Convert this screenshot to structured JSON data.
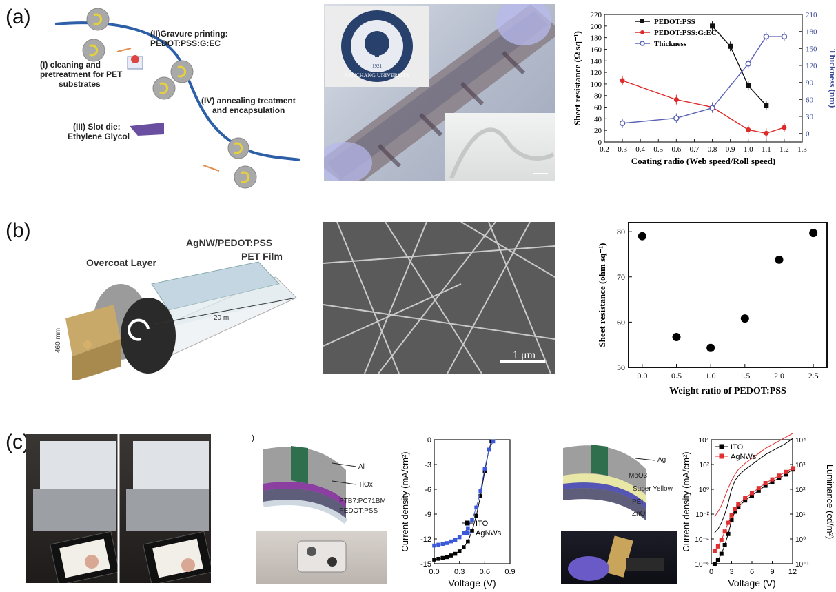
{
  "panels": {
    "a": "(a)",
    "b": "(b)",
    "c": "(c)"
  },
  "a_schematic": {
    "step1": [
      "(I) cleaning and",
      "pretreatment for PET",
      "substrates"
    ],
    "step2": [
      "(II)Gravure printing:",
      "PEDOT:PSS:G:EC"
    ],
    "step3": [
      "(III) Slot die:",
      "Ethylene Glycol"
    ],
    "step4": [
      "(IV) annealing treatment",
      "and encapsulation"
    ]
  },
  "a_photo": {
    "logo_text": "NANCHANG UNIVERSITY",
    "logo_year": "1921"
  },
  "b_schematic": {
    "overcoat": "Overcoat Layer",
    "agnw": "AgNW/PEDOT:PSS",
    "pet": "PET Film",
    "length": "20 m",
    "width": "460 mm"
  },
  "b_sem": {
    "scale": "1 μm"
  },
  "c_solar": {
    "layers": [
      "Al",
      "TiOx",
      "PTB7:PC71BM",
      "PEDOT:PSS"
    ],
    "paren": ")"
  },
  "c_led": {
    "layers": [
      "Ag",
      "MoO3",
      "Super Yellow",
      "PEI",
      "ZnO"
    ]
  },
  "chart_data": [
    {
      "id": "a_chart",
      "type": "line",
      "xlabel": "Coating radio (Web speed/Roll speed)",
      "ylabel": "Sheet resistance (Ω sq⁻¹)",
      "y2label": "Thickness (nm)",
      "xlim": [
        0.2,
        1.3
      ],
      "ylim": [
        0,
        220
      ],
      "y2lim": [
        -15,
        210
      ],
      "xticks": [
        "0.2",
        "0.3",
        "0.4",
        "0.5",
        "0.6",
        "0.7",
        "0.8",
        "0.9",
        "1.0",
        "1.1",
        "1.2",
        "1.3"
      ],
      "yticks": [
        "0",
        "20",
        "40",
        "60",
        "80",
        "100",
        "120",
        "140",
        "160",
        "180",
        "200",
        "220"
      ],
      "y2ticks": [
        "0",
        "30",
        "60",
        "90",
        "120",
        "150",
        "180",
        "210"
      ],
      "legend_position": "top-left",
      "series": [
        {
          "name": "PEDOT:PSS",
          "color": "#111111",
          "axis": "left",
          "marker": "square",
          "x": [
            0.8,
            0.9,
            1.0,
            1.1
          ],
          "y": [
            200,
            165,
            97,
            63
          ]
        },
        {
          "name": "PEDOT:PSS:G:EC",
          "color": "#dd2a2a",
          "axis": "left",
          "marker": "circle",
          "x": [
            0.3,
            0.6,
            0.8,
            1.0,
            1.1,
            1.2
          ],
          "y": [
            106,
            73,
            60,
            21,
            15,
            25
          ]
        },
        {
          "name": "Thickness",
          "color": "#5a62b8",
          "axis": "right",
          "marker": "open-circle",
          "x": [
            0.3,
            0.6,
            0.8,
            1.0,
            1.1,
            1.2
          ],
          "y": [
            18,
            27,
            45,
            123,
            171,
            171
          ]
        }
      ]
    },
    {
      "id": "b_chart",
      "type": "scatter",
      "xlabel": "Weight ratio of PEDOT:PSS",
      "ylabel": "Sheet resistance (ohm sq⁻¹)",
      "xlim": [
        -0.2,
        2.7
      ],
      "ylim": [
        50,
        82
      ],
      "xticks": [
        "0.0",
        "0.5",
        "1.0",
        "1.5",
        "2.0",
        "2.5"
      ],
      "yticks": [
        "50",
        "60",
        "70",
        "80"
      ],
      "x": [
        0.0,
        0.5,
        1.0,
        1.5,
        2.0,
        2.5
      ],
      "y": [
        79,
        56.7,
        54.3,
        60.8,
        73.8,
        79.7
      ]
    },
    {
      "id": "c_solar_chart",
      "type": "line",
      "xlabel": "Voltage (V)",
      "ylabel": "Current density (mA/cm²)",
      "xlim": [
        0.0,
        0.9
      ],
      "ylim": [
        -15,
        0
      ],
      "xticks": [
        "0.0",
        "0.3",
        "0.6",
        "0.9"
      ],
      "yticks": [
        "0",
        "-3",
        "-6",
        "-9",
        "-12",
        "-15"
      ],
      "legend_position": "bottom-right",
      "series": [
        {
          "name": "ITO",
          "color": "#000000",
          "marker": "square",
          "x": [
            0,
            0.05,
            0.1,
            0.15,
            0.2,
            0.25,
            0.3,
            0.35,
            0.4,
            0.45,
            0.5,
            0.55,
            0.6,
            0.65,
            0.68
          ],
          "y": [
            -14.5,
            -14.4,
            -14.3,
            -14.2,
            -14.0,
            -13.8,
            -13.5,
            -13.0,
            -12.3,
            -11.0,
            -9.2,
            -6.8,
            -3.8,
            -1.2,
            -0.2
          ]
        },
        {
          "name": "AgNWs",
          "color": "#3c5ad8",
          "marker": "square",
          "x": [
            0,
            0.05,
            0.1,
            0.15,
            0.2,
            0.25,
            0.3,
            0.35,
            0.4,
            0.45,
            0.5,
            0.55,
            0.6,
            0.65,
            0.7
          ],
          "y": [
            -12.8,
            -12.7,
            -12.6,
            -12.5,
            -12.3,
            -12.1,
            -11.8,
            -11.3,
            -10.7,
            -9.7,
            -8.2,
            -6.2,
            -3.5,
            -1.2,
            -0.2
          ]
        }
      ]
    },
    {
      "id": "c_led_chart",
      "type": "line",
      "xlabel": "Voltage (V)",
      "ylabel": "Current density (mA/cm²)",
      "y2label": "Luminance (cd/m²)",
      "xlim": [
        0,
        12
      ],
      "xticks": [
        "0",
        "3",
        "6",
        "9",
        "12"
      ],
      "yticks": [
        "10⁻⁶",
        "10⁻⁴",
        "10⁻²",
        "10⁰",
        "10²",
        "10⁴"
      ],
      "y2ticks": [
        "10⁻¹",
        "10⁰",
        "10¹",
        "10²",
        "10³",
        "10⁴"
      ],
      "scale": "log",
      "legend_position": "top-left",
      "series": [
        {
          "name": "ITO",
          "color": "#000000",
          "marker": "square",
          "x": [
            0.5,
            1,
            1.5,
            2,
            2.5,
            3,
            3.5,
            4,
            5,
            6,
            7,
            8,
            9,
            10,
            11,
            12
          ],
          "exp": [
            -6,
            -5.7,
            -5.2,
            -4.5,
            -3.6,
            -2.5,
            -1.8,
            -1.4,
            -0.9,
            -0.5,
            -0.1,
            0.3,
            0.6,
            0.9,
            1.2,
            1.6
          ]
        },
        {
          "name": "AgNWs",
          "color": "#e03030",
          "marker": "square",
          "x": [
            0.5,
            1,
            1.5,
            2,
            2.5,
            3,
            3.5,
            4,
            5,
            6,
            7,
            8,
            9,
            10,
            11,
            12
          ],
          "exp": [
            -5,
            -4.6,
            -4.1,
            -3.4,
            -2.7,
            -2.1,
            -1.6,
            -1.2,
            -0.7,
            -0.3,
            0.1,
            0.5,
            0.8,
            1.1,
            1.4,
            1.7
          ]
        }
      ]
    }
  ]
}
